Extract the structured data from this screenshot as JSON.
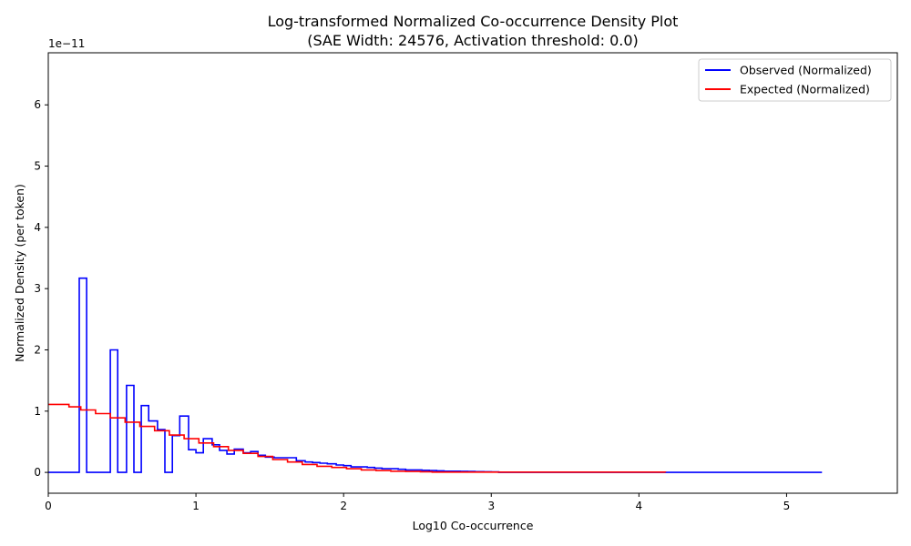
{
  "chart_data": {
    "type": "line",
    "title": "Log-transformed Normalized Co-occurrence Density Plot",
    "subtitle": "(SAE Width: 24576, Activation threshold: 0.0)",
    "xlabel": "Log10 Co-occurrence",
    "ylabel": "Normalized Density (per token)",
    "y_offset_text": "1e−11",
    "xlim": [
      0,
      5.75
    ],
    "ylim": [
      -0.34,
      6.85
    ],
    "x_ticks": [
      0,
      1,
      2,
      3,
      4,
      5
    ],
    "x_tick_labels": [
      "0",
      "1",
      "2",
      "3",
      "4",
      "5"
    ],
    "y_ticks": [
      0,
      1,
      2,
      3,
      4,
      5,
      6
    ],
    "y_tick_labels": [
      "0",
      "1",
      "2",
      "3",
      "4",
      "5",
      "6"
    ],
    "legend_position": "top-right",
    "drawstyle": "steps",
    "series": [
      {
        "name": "Observed (Normalized)",
        "color": "#0000ff",
        "x": [
          0,
          0.21,
          0.26,
          0.42,
          0.47,
          0.53,
          0.58,
          0.63,
          0.68,
          0.74,
          0.79,
          0.84,
          0.89,
          0.95,
          1.0,
          1.05,
          1.11,
          1.16,
          1.21,
          1.26,
          1.32,
          1.37,
          1.42,
          1.47,
          1.53,
          1.58,
          1.63,
          1.68,
          1.74,
          1.79,
          1.84,
          1.89,
          1.95,
          2.0,
          2.05,
          2.11,
          2.16,
          2.21,
          2.26,
          2.32,
          2.37,
          2.42,
          2.47,
          2.53,
          2.58,
          2.63,
          2.68,
          2.74,
          2.79,
          2.84,
          2.89,
          2.95,
          3.0,
          3.05,
          5.24
        ],
        "y": [
          0,
          3.17,
          0,
          2.0,
          0,
          1.42,
          0,
          1.09,
          0.84,
          0.7,
          0,
          0.6,
          0.92,
          0.37,
          0.32,
          0.55,
          0.45,
          0.36,
          0.3,
          0.38,
          0.32,
          0.34,
          0.28,
          0.25,
          0.24,
          0.24,
          0.24,
          0.19,
          0.17,
          0.16,
          0.15,
          0.14,
          0.12,
          0.11,
          0.09,
          0.09,
          0.08,
          0.07,
          0.06,
          0.06,
          0.05,
          0.04,
          0.04,
          0.035,
          0.03,
          0.025,
          0.02,
          0.02,
          0.018,
          0.015,
          0.012,
          0.01,
          0.008,
          0,
          0
        ]
      },
      {
        "name": "Expected (Normalized)",
        "color": "#ff0000",
        "x": [
          0,
          0.14,
          0.22,
          0.32,
          0.42,
          0.52,
          0.62,
          0.72,
          0.82,
          0.92,
          1.02,
          1.12,
          1.22,
          1.32,
          1.42,
          1.52,
          1.62,
          1.72,
          1.82,
          1.92,
          2.02,
          2.12,
          2.22,
          2.32,
          2.42,
          2.52,
          2.6,
          4.18
        ],
        "y": [
          1.11,
          1.07,
          1.02,
          0.96,
          0.89,
          0.82,
          0.75,
          0.68,
          0.61,
          0.55,
          0.48,
          0.42,
          0.36,
          0.31,
          0.26,
          0.21,
          0.17,
          0.13,
          0.1,
          0.08,
          0.06,
          0.04,
          0.03,
          0.02,
          0.015,
          0.01,
          0.005,
          0.003
        ]
      }
    ]
  }
}
